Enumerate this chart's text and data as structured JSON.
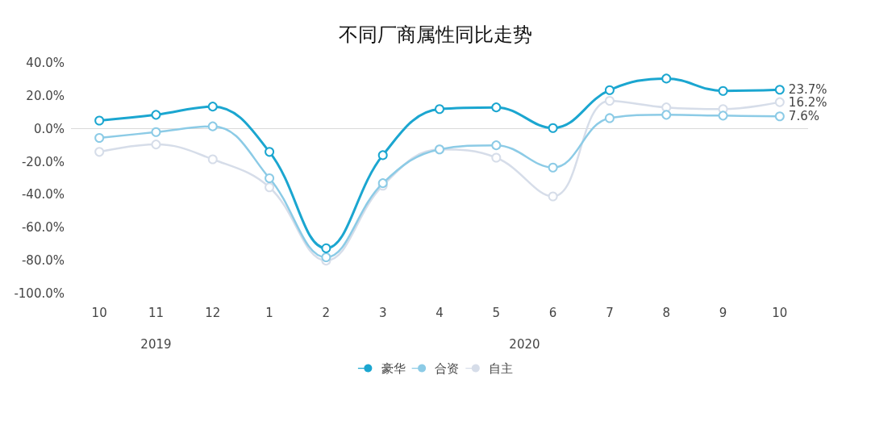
{
  "chart_data": {
    "type": "line",
    "title": "不同厂商属性同比走势",
    "categories": [
      "10",
      "11",
      "12",
      "1",
      "2",
      "3",
      "4",
      "5",
      "6",
      "7",
      "8",
      "9",
      "10"
    ],
    "series": [
      {
        "name": "豪华",
        "color": "#1ba6d0",
        "values": [
          5.0,
          8.5,
          13.5,
          -14,
          -72.5,
          -16,
          12,
          13,
          0.5,
          23.5,
          30.5,
          23,
          23.7
        ],
        "value_labels": [
          null,
          null,
          null,
          null,
          null,
          null,
          null,
          null,
          null,
          null,
          null,
          null,
          "23.7%"
        ]
      },
      {
        "name": "合资",
        "color": "#8ccbe6",
        "values": [
          -5.5,
          -2,
          1.5,
          -30,
          -78,
          -33,
          -12.5,
          -10,
          -23.5,
          6.5,
          8.5,
          8,
          7.6
        ],
        "value_labels": [
          null,
          null,
          null,
          null,
          null,
          null,
          null,
          null,
          null,
          null,
          null,
          null,
          "7.6%"
        ]
      },
      {
        "name": "自主",
        "color": "#d6dde9",
        "values": [
          -14,
          -9.5,
          -18.5,
          -35.5,
          -80,
          -34.5,
          -12.5,
          -17.5,
          -41,
          17,
          13,
          12,
          16.2
        ],
        "value_labels": [
          null,
          null,
          null,
          null,
          null,
          null,
          null,
          null,
          null,
          null,
          null,
          null,
          "16.2%"
        ]
      }
    ],
    "ylim": [
      -100,
      40
    ],
    "yticks": [
      {
        "value": -100,
        "label": "-100.0%"
      },
      {
        "value": -80,
        "label": "-80.0%"
      },
      {
        "value": -60,
        "label": "-60.0%"
      },
      {
        "value": -40,
        "label": "-40.0%"
      },
      {
        "value": -20,
        "label": "-20.0%"
      },
      {
        "value": 0,
        "label": "0.0%"
      },
      {
        "value": 20,
        "label": "20.0%"
      },
      {
        "value": 40,
        "label": "40.0%"
      }
    ],
    "annotations": [
      "2019",
      "2020"
    ],
    "ref_lines": [
      {
        "axis": "y",
        "value": 0,
        "color": "#d9d9d9"
      }
    ],
    "grid": false,
    "legend": "bottom",
    "marker": "circle",
    "line_style": "solid"
  }
}
